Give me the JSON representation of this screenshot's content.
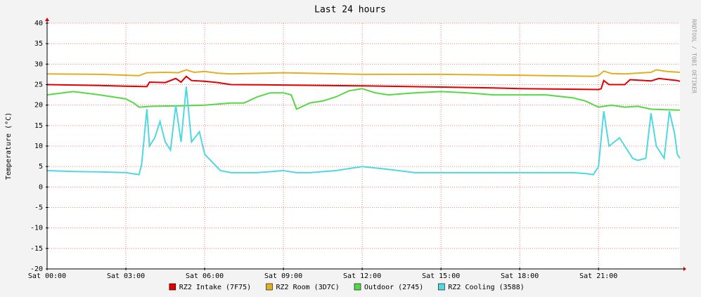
{
  "chart_data": {
    "type": "line",
    "title": "Last 24 hours",
    "y_label": "Temperature (°C)",
    "side_label": "RRDTOOL / TOBI OETIKER",
    "xlim": [
      0,
      24.1
    ],
    "ylim": [
      -20,
      40
    ],
    "yticks": [
      -20,
      -15,
      -10,
      -5,
      0,
      5,
      10,
      15,
      20,
      25,
      30,
      35,
      40
    ],
    "xticks": [
      {
        "value": 0,
        "label": "Sat 00:00"
      },
      {
        "value": 3,
        "label": "Sat 03:00"
      },
      {
        "value": 6,
        "label": "Sat 06:00"
      },
      {
        "value": 9,
        "label": "Sat 09:00"
      },
      {
        "value": 12,
        "label": "Sat 12:00"
      },
      {
        "value": 15,
        "label": "Sat 15:00"
      },
      {
        "value": 18,
        "label": "Sat 18:00"
      },
      {
        "value": 21,
        "label": "Sat 21:00"
      }
    ],
    "grid": true,
    "series": [
      {
        "name": "RZ2 Intake (7F75)",
        "color": "#e00000",
        "x": [
          0,
          1,
          2,
          3,
          3.8,
          3.9,
          4.5,
          4.9,
          5.1,
          5.3,
          5.5,
          6,
          6.5,
          7,
          9,
          12,
          15,
          17,
          18,
          21,
          21.1,
          21.2,
          21.4,
          22,
          22.2,
          23,
          23.3,
          24,
          24.1
        ],
        "values": [
          25,
          24.9,
          24.8,
          24.6,
          24.5,
          25.6,
          25.5,
          26.5,
          25.6,
          27,
          26,
          25.8,
          25.5,
          25,
          24.9,
          24.7,
          24.4,
          24.2,
          24,
          23.8,
          24,
          26,
          25,
          25,
          26.2,
          25.9,
          26.5,
          26,
          25.8
        ]
      },
      {
        "name": "RZ2 Room (3D7C)",
        "color": "#e0b020",
        "x": [
          0,
          2,
          3.5,
          3.8,
          4.5,
          5,
          5.3,
          5.6,
          6,
          6.5,
          7,
          9,
          12,
          15,
          18,
          20.8,
          21,
          21.2,
          21.5,
          22,
          23,
          23.2,
          23.6,
          24.1
        ],
        "values": [
          27.6,
          27.5,
          27.2,
          27.9,
          28,
          27.9,
          28.6,
          28,
          28.2,
          27.8,
          27.6,
          27.9,
          27.5,
          27.5,
          27.3,
          27,
          27.2,
          28.3,
          27.7,
          27.6,
          28,
          28.6,
          28.2,
          28
        ]
      },
      {
        "name": "Outdoor (2745)",
        "color": "#55d845",
        "x": [
          0,
          1,
          2,
          3,
          3.3,
          3.5,
          4,
          5,
          6,
          7,
          7.5,
          8,
          8.5,
          9,
          9.3,
          9.5,
          10,
          10.5,
          11,
          11.5,
          12,
          12.5,
          13,
          14,
          15,
          16,
          17,
          18,
          19,
          20,
          20.5,
          21,
          21.5,
          22,
          22.5,
          23,
          24,
          24.1
        ],
        "values": [
          22.5,
          23.3,
          22.5,
          21.5,
          20.5,
          19.5,
          19.7,
          19.8,
          20,
          20.5,
          20.5,
          22,
          23,
          23,
          22.5,
          19,
          20.5,
          21,
          22,
          23.5,
          24,
          23,
          22.5,
          23,
          23.3,
          23,
          22.5,
          22.5,
          22.5,
          21.8,
          21,
          19.5,
          20,
          19.5,
          19.7,
          19,
          18.8,
          18.8
        ]
      },
      {
        "name": "RZ2 Cooling (3588)",
        "color": "#50d8e0",
        "x": [
          0,
          1,
          2,
          3,
          3.5,
          3.6,
          3.8,
          3.9,
          4.1,
          4.3,
          4.5,
          4.7,
          4.9,
          5.1,
          5.3,
          5.5,
          5.8,
          6,
          6.3,
          6.6,
          7,
          8,
          9,
          9.5,
          10,
          11,
          12,
          13,
          14,
          15,
          16,
          17,
          18,
          19,
          20,
          20.5,
          20.8,
          21,
          21.2,
          21.4,
          21.8,
          22,
          22.3,
          22.5,
          22.8,
          23,
          23.2,
          23.5,
          23.7,
          23.9,
          24,
          24.1
        ],
        "values": [
          4,
          3.8,
          3.7,
          3.5,
          3,
          5.5,
          19,
          10,
          12,
          16,
          11,
          9,
          20,
          11,
          24.5,
          11,
          13.5,
          8,
          6,
          4,
          3.5,
          3.5,
          4,
          3.5,
          3.5,
          4,
          5,
          4.3,
          3.5,
          3.5,
          3.5,
          3.5,
          3.5,
          3.5,
          3.5,
          3.3,
          3,
          5,
          18.5,
          10,
          12,
          10,
          7,
          6.5,
          7,
          18,
          10,
          7,
          18.5,
          13,
          8,
          7
        ]
      }
    ]
  }
}
